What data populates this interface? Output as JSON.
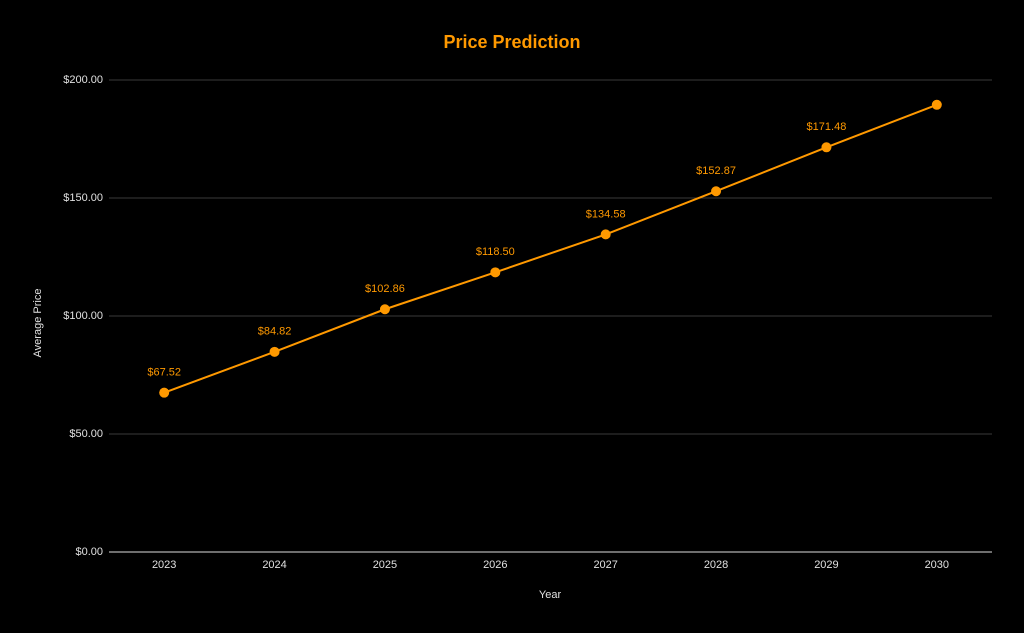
{
  "chart_data": {
    "type": "line",
    "title": "Price Prediction",
    "x_label": "Year",
    "y_label": "Average Price",
    "categories": [
      "2023",
      "2024",
      "2025",
      "2026",
      "2027",
      "2028",
      "2029",
      "2030"
    ],
    "series": [
      {
        "name": "Average Price",
        "color": "#ff9900",
        "values": [
          67.52,
          84.82,
          102.86,
          118.5,
          134.58,
          152.87,
          171.48,
          189.5
        ],
        "value_labels": [
          "$67.52",
          "$84.82",
          "$102.86",
          "$118.50",
          "$134.58",
          "$152.87",
          "$171.48",
          null
        ]
      }
    ],
    "ylim": [
      0,
      200
    ],
    "yticks": [
      {
        "value": 0,
        "label": "$0.00"
      },
      {
        "value": 50,
        "label": "$50.00"
      },
      {
        "value": 100,
        "label": "$100.00"
      },
      {
        "value": 150,
        "label": "$150.00"
      },
      {
        "value": 200,
        "label": "$200.00"
      }
    ],
    "grid": true
  }
}
